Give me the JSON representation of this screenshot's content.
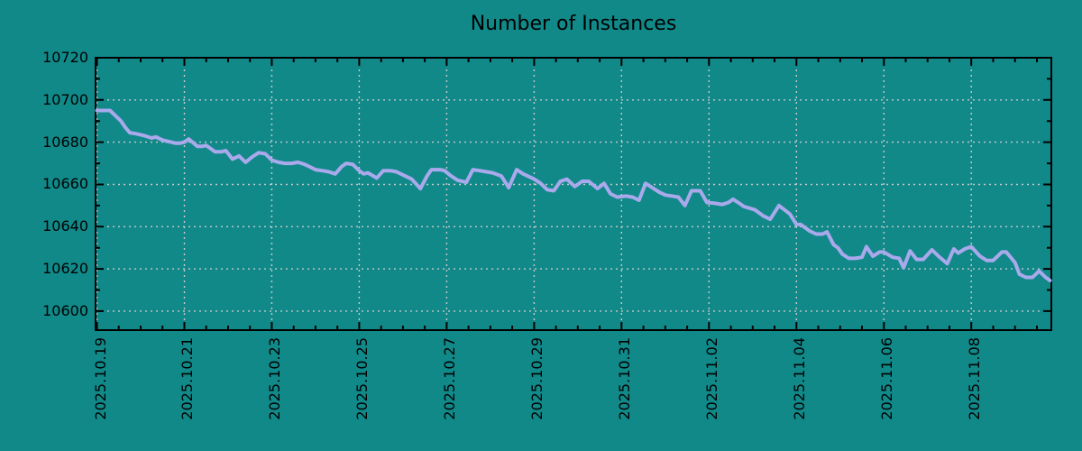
{
  "colors": {
    "background": "#118989",
    "line": "#a9a9ec",
    "grid": "#c8c8c8",
    "axis": "#000000",
    "text": "#000000"
  },
  "chart_data": {
    "type": "line",
    "title": "Number of Instances",
    "xlabel": "",
    "ylabel": "",
    "grid": "dotted",
    "legend": "none",
    "yticks": [
      10600,
      10620,
      10640,
      10660,
      10680,
      10700,
      10720
    ],
    "ylim": [
      10591,
      10720
    ],
    "y_minor_step": 10,
    "xtick_labels": [
      "2025.10.19",
      "2025.10.21",
      "2025.10.23",
      "2025.10.25",
      "2025.10.27",
      "2025.10.29",
      "2025.10.31",
      "2025.11.02",
      "2025.11.04",
      "2025.11.06",
      "2025.11.08"
    ],
    "xtick_days": [
      0,
      2,
      4,
      6,
      8,
      10,
      12,
      14,
      16,
      18,
      20
    ],
    "xlim_days": [
      0,
      21.8
    ],
    "x_minor_step_days": 0.5,
    "x_unit": "days since 2025-10-19",
    "series": [
      {
        "name": "instances",
        "points": [
          [
            0,
            10695
          ],
          [
            0.15,
            10695
          ],
          [
            0.3,
            10695
          ],
          [
            0.4,
            10693
          ],
          [
            0.55,
            10690
          ],
          [
            0.65,
            10687
          ],
          [
            0.75,
            10684.5
          ],
          [
            0.9,
            10684
          ],
          [
            1,
            10683.5
          ],
          [
            1.1,
            10683
          ],
          [
            1.25,
            10682
          ],
          [
            1.35,
            10682.5
          ],
          [
            1.5,
            10681
          ],
          [
            1.6,
            10680.5
          ],
          [
            1.7,
            10680
          ],
          [
            1.8,
            10679.5
          ],
          [
            1.9,
            10679.5
          ],
          [
            2,
            10680
          ],
          [
            2.1,
            10681.5
          ],
          [
            2.3,
            10678
          ],
          [
            2.4,
            10678
          ],
          [
            2.5,
            10678.5
          ],
          [
            2.6,
            10677
          ],
          [
            2.7,
            10675.5
          ],
          [
            2.85,
            10675.5
          ],
          [
            2.95,
            10676
          ],
          [
            3.1,
            10672
          ],
          [
            3.25,
            10673.5
          ],
          [
            3.4,
            10670.5
          ],
          [
            3.55,
            10673
          ],
          [
            3.7,
            10675
          ],
          [
            3.85,
            10674.5
          ],
          [
            4,
            10671.5
          ],
          [
            4.15,
            10670.5
          ],
          [
            4.3,
            10670
          ],
          [
            4.45,
            10670
          ],
          [
            4.6,
            10670.5
          ],
          [
            4.75,
            10669.5
          ],
          [
            4.9,
            10668
          ],
          [
            5,
            10667
          ],
          [
            5.15,
            10666.5
          ],
          [
            5.3,
            10666
          ],
          [
            5.45,
            10665
          ],
          [
            5.6,
            10668.5
          ],
          [
            5.7,
            10670
          ],
          [
            5.85,
            10669.5
          ],
          [
            6,
            10666.5
          ],
          [
            6.1,
            10665
          ],
          [
            6.2,
            10665.5
          ],
          [
            6.4,
            10663
          ],
          [
            6.55,
            10666.5
          ],
          [
            6.7,
            10666.5
          ],
          [
            6.85,
            10666
          ],
          [
            7,
            10664.5
          ],
          [
            7.2,
            10662.5
          ],
          [
            7.4,
            10658
          ],
          [
            7.55,
            10664
          ],
          [
            7.65,
            10667
          ],
          [
            7.85,
            10667
          ],
          [
            7.95,
            10666.5
          ],
          [
            8.1,
            10664
          ],
          [
            8.25,
            10662
          ],
          [
            8.45,
            10661
          ],
          [
            8.6,
            10667
          ],
          [
            8.75,
            10666.5
          ],
          [
            8.9,
            10666
          ],
          [
            9.05,
            10665.5
          ],
          [
            9.25,
            10664
          ],
          [
            9.42,
            10658.5
          ],
          [
            9.6,
            10667
          ],
          [
            9.75,
            10665
          ],
          [
            9.85,
            10664
          ],
          [
            10,
            10662.5
          ],
          [
            10.15,
            10660.5
          ],
          [
            10.3,
            10657.5
          ],
          [
            10.45,
            10657
          ],
          [
            10.6,
            10661.5
          ],
          [
            10.75,
            10662.5
          ],
          [
            10.93,
            10659
          ],
          [
            11.1,
            10661.5
          ],
          [
            11.25,
            10661.5
          ],
          [
            11.45,
            10658
          ],
          [
            11.6,
            10660.5
          ],
          [
            11.75,
            10655.5
          ],
          [
            11.9,
            10654
          ],
          [
            12.1,
            10654.5
          ],
          [
            12.25,
            10654
          ],
          [
            12.4,
            10652.5
          ],
          [
            12.55,
            10660.5
          ],
          [
            12.7,
            10658.5
          ],
          [
            12.85,
            10656.5
          ],
          [
            13,
            10655
          ],
          [
            13.15,
            10654.5
          ],
          [
            13.3,
            10654
          ],
          [
            13.45,
            10650
          ],
          [
            13.6,
            10657
          ],
          [
            13.8,
            10657
          ],
          [
            13.95,
            10651.5
          ],
          [
            14.15,
            10651
          ],
          [
            14.3,
            10650.5
          ],
          [
            14.45,
            10651.5
          ],
          [
            14.55,
            10653
          ],
          [
            14.7,
            10651
          ],
          [
            14.8,
            10649.5
          ],
          [
            15.05,
            10648
          ],
          [
            15.25,
            10645
          ],
          [
            15.4,
            10643.5
          ],
          [
            15.6,
            10650
          ],
          [
            15.85,
            10646
          ],
          [
            16,
            10641
          ],
          [
            16.1,
            10641
          ],
          [
            16.3,
            10638
          ],
          [
            16.45,
            10636.5
          ],
          [
            16.6,
            10636.5
          ],
          [
            16.7,
            10637.5
          ],
          [
            16.85,
            10631.5
          ],
          [
            16.95,
            10630
          ],
          [
            17.05,
            10627
          ],
          [
            17.2,
            10625
          ],
          [
            17.35,
            10625
          ],
          [
            17.5,
            10625.5
          ],
          [
            17.6,
            10630.5
          ],
          [
            17.75,
            10626
          ],
          [
            17.9,
            10628
          ],
          [
            18,
            10628
          ],
          [
            18.2,
            10625.5
          ],
          [
            18.35,
            10625
          ],
          [
            18.45,
            10620.5
          ],
          [
            18.6,
            10628.5
          ],
          [
            18.75,
            10624.5
          ],
          [
            18.9,
            10624.5
          ],
          [
            19.1,
            10629
          ],
          [
            19.25,
            10626
          ],
          [
            19.45,
            10622.5
          ],
          [
            19.6,
            10629.5
          ],
          [
            19.7,
            10627.5
          ],
          [
            19.85,
            10629.5
          ],
          [
            20,
            10630.5
          ],
          [
            20.2,
            10626
          ],
          [
            20.35,
            10624
          ],
          [
            20.5,
            10624
          ],
          [
            20.7,
            10628
          ],
          [
            20.8,
            10628
          ],
          [
            21,
            10623
          ],
          [
            21.1,
            10617.5
          ],
          [
            21.25,
            10616
          ],
          [
            21.4,
            10616
          ],
          [
            21.55,
            10619
          ],
          [
            21.7,
            10616
          ],
          [
            21.8,
            10614.5
          ]
        ]
      }
    ]
  }
}
